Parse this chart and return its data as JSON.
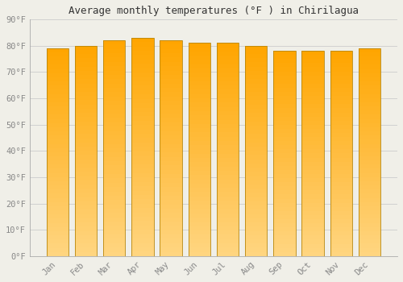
{
  "title": "Average monthly temperatures (°F ) in Chirilagua",
  "categories": [
    "Jan",
    "Feb",
    "Mar",
    "Apr",
    "May",
    "Jun",
    "Jul",
    "Aug",
    "Sep",
    "Oct",
    "Nov",
    "Dec"
  ],
  "values": [
    79,
    80,
    82,
    83,
    82,
    81,
    81,
    80,
    78,
    78,
    78,
    79
  ],
  "bar_color_top": "#FFA500",
  "bar_color_bottom": "#FFD580",
  "bar_edge_color": "#B8860B",
  "background_color": "#F0EFE8",
  "grid_color": "#CCCCCC",
  "ylim": [
    0,
    90
  ],
  "yticks": [
    0,
    10,
    20,
    30,
    40,
    50,
    60,
    70,
    80,
    90
  ],
  "ytick_labels": [
    "0°F",
    "10°F",
    "20°F",
    "30°F",
    "40°F",
    "50°F",
    "60°F",
    "70°F",
    "80°F",
    "90°F"
  ],
  "title_fontsize": 9,
  "tick_fontsize": 7.5,
  "title_font_family": "monospace",
  "bar_width": 0.78
}
